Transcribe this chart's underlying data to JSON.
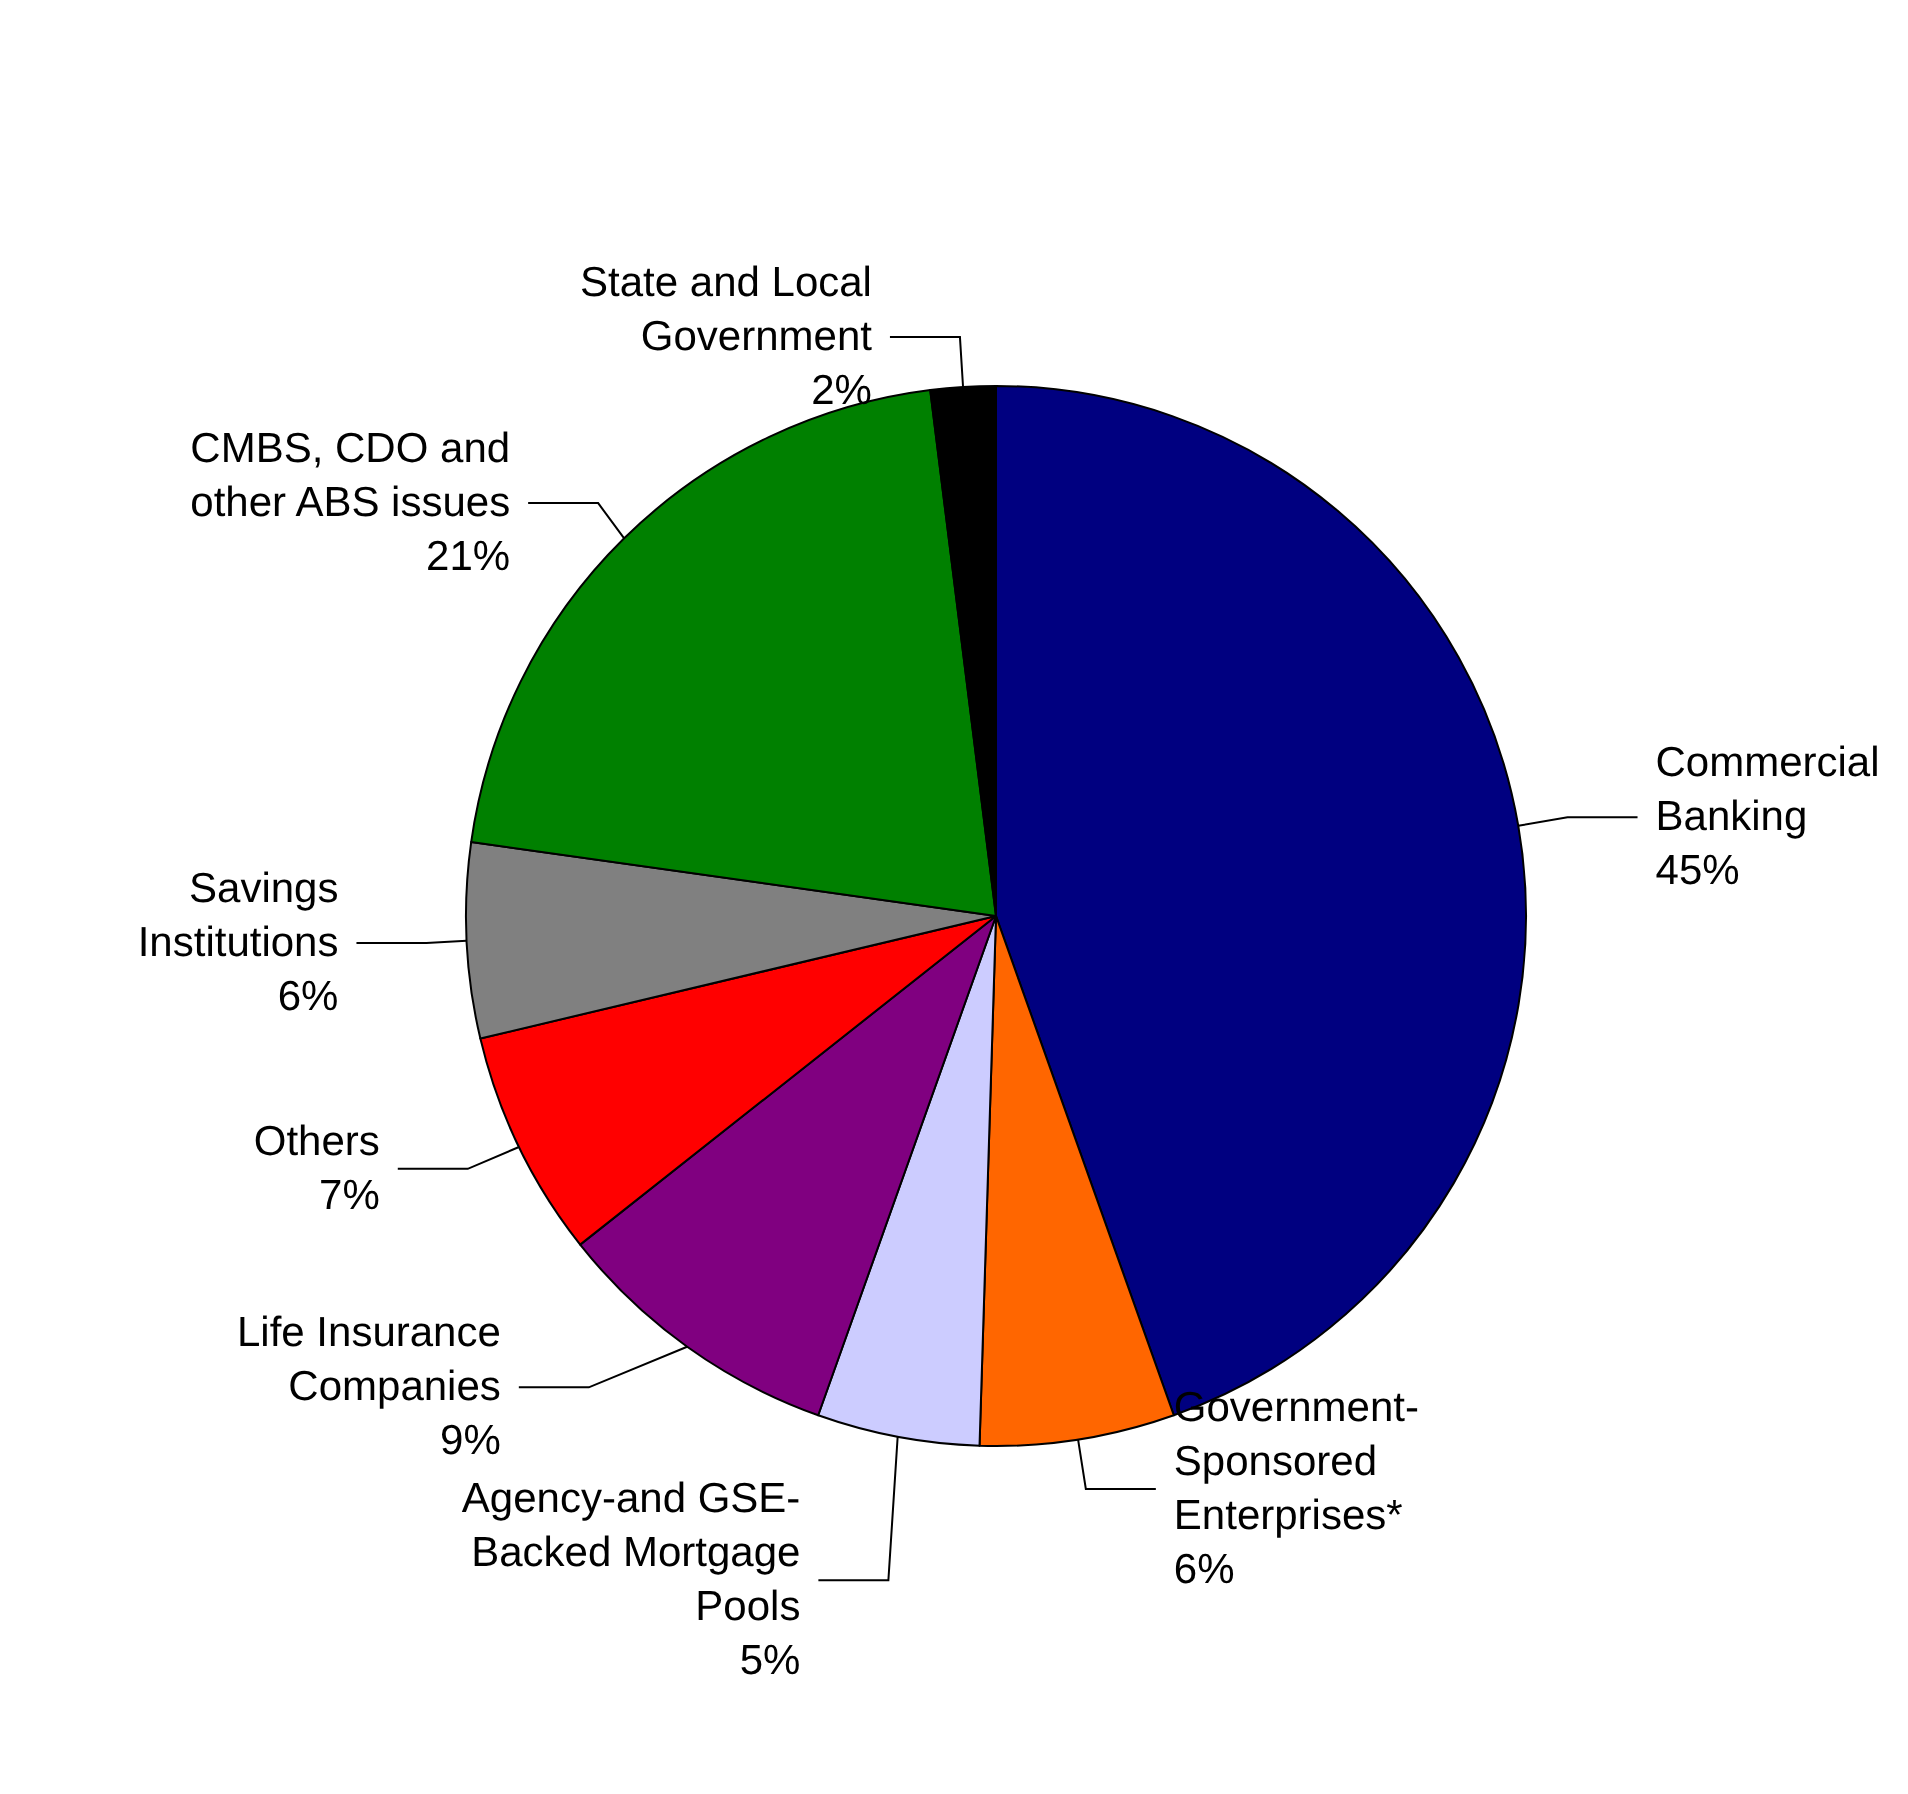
{
  "chart_data": {
    "type": "pie",
    "categories": [
      "Commercial\nBanking",
      "Government-\nSponsored\nEnterprises*",
      "Agency-and GSE-\nBacked Mortgage\nPools",
      "Life Insurance\nCompanies",
      "Others",
      "Savings\nInstitutions",
      "CMBS, CDO and\nother ABS issues",
      "State and Local\nGovernment"
    ],
    "values": [
      45,
      6,
      5,
      9,
      7,
      6,
      21,
      2
    ],
    "value_labels": [
      "45%",
      "6%",
      "5%",
      "9%",
      "7%",
      "6%",
      "21%",
      "2%"
    ],
    "colors": [
      "#000080",
      "#ff6600",
      "#ccccff",
      "#800080",
      "#ff0000",
      "#808080",
      "#008000",
      "#000000"
    ],
    "legend": false
  }
}
